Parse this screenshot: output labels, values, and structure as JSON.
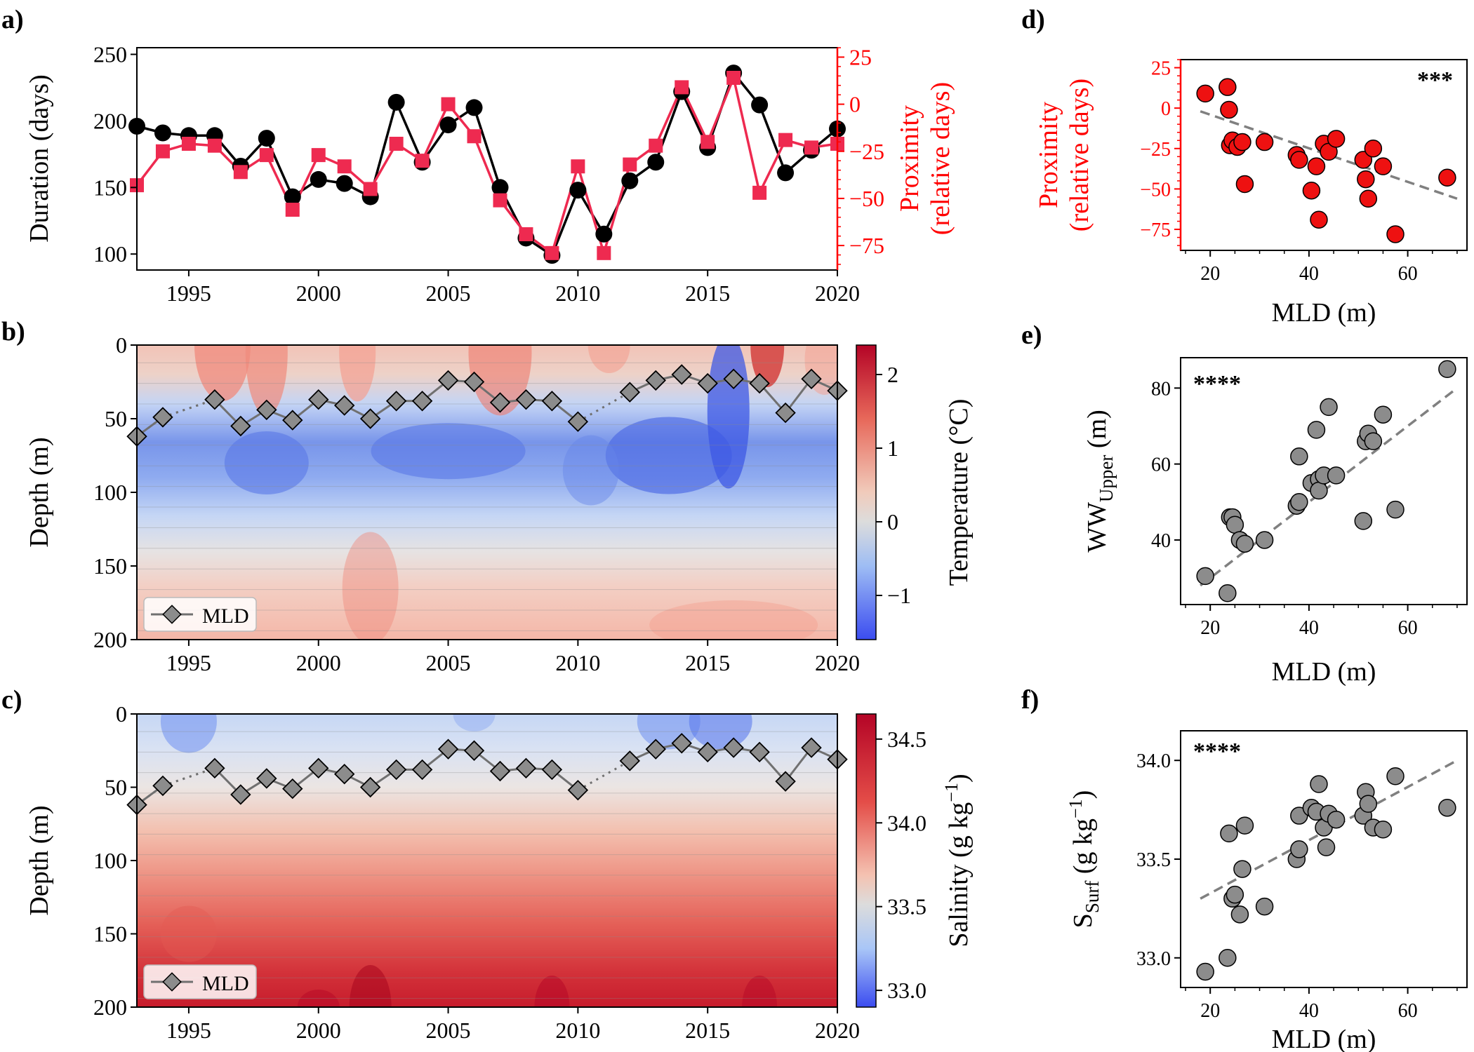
{
  "colors": {
    "duration": "#000000",
    "proximity": "#ee2a50",
    "proximity_axis": "#ff0000",
    "scatter_red": "#ee1111",
    "scatter_grey": "#8c8c8c",
    "mld_line": "#707070"
  },
  "chart_data": [
    {
      "panel": "a)",
      "type": "line",
      "x": [
        1993,
        1994,
        1995,
        1996,
        1997,
        1998,
        1999,
        2000,
        2001,
        2002,
        2003,
        2004,
        2005,
        2006,
        2007,
        2008,
        2009,
        2010,
        2011,
        2012,
        2013,
        2014,
        2015,
        2016,
        2017,
        2018,
        2019,
        2020
      ],
      "xticks": [
        1995,
        2000,
        2005,
        2010,
        2015,
        2020
      ],
      "xlim": [
        1993,
        2020
      ],
      "ylabel": "Duration (days)",
      "ylim": [
        88,
        255
      ],
      "yticks": [
        100,
        150,
        200,
        250
      ],
      "ylabel_right": "Proximity\n(relative days)",
      "ylim_right": [
        -88,
        30
      ],
      "yticks_right": [
        25,
        0,
        -25,
        -50,
        -75
      ],
      "series": [
        {
          "values": [
            196,
            191,
            189,
            189,
            166,
            187,
            143,
            156,
            153,
            143,
            214,
            169,
            197,
            210,
            150,
            112,
            99,
            148,
            115,
            155,
            169,
            222,
            180,
            236,
            212,
            161,
            178,
            194
          ]
        },
        {
          "values": [
            -43,
            -25,
            -21,
            -22,
            -36,
            -27,
            -56,
            -27,
            -33,
            -45,
            -21,
            -30,
            0,
            -17,
            -51,
            -69,
            -79,
            -33,
            -79,
            -32,
            -22,
            9,
            -20,
            14,
            -47,
            -19,
            -23,
            -21
          ]
        }
      ]
    },
    {
      "panel": "b)",
      "type": "heatmap",
      "ylabel": "Depth (m)",
      "ylim": [
        200,
        0
      ],
      "yticks": [
        0,
        50,
        100,
        150,
        200
      ],
      "xticks": [
        1995,
        2000,
        2005,
        2010,
        2015,
        2020
      ],
      "xlim": [
        1993,
        2020
      ],
      "colorbar_label": "Temperature (°C)",
      "colorbar_ticks": [
        "2",
        "1",
        "0",
        "−1"
      ],
      "colorbar_range": [
        -1.6,
        2.4
      ],
      "legend": "MLD"
    },
    {
      "panel": "c)",
      "type": "heatmap",
      "ylabel": "Depth (m)",
      "ylim": [
        200,
        0
      ],
      "yticks": [
        0,
        50,
        100,
        150,
        200
      ],
      "xticks": [
        1995,
        2000,
        2005,
        2010,
        2015,
        2020
      ],
      "xlim": [
        1993,
        2020
      ],
      "colorbar_label": "Salinity (g kg",
      "colorbar_label_sup": "−1",
      "colorbar_label_end": ")",
      "colorbar_ticks": [
        "34.5",
        "34.0",
        "33.5",
        "33.0"
      ],
      "colorbar_range": [
        32.9,
        34.65
      ],
      "legend": "MLD"
    },
    {
      "series_name": "MLD",
      "x": [
        1993,
        1994,
        1995,
        1996,
        1997,
        1998,
        1999,
        2000,
        2001,
        2002,
        2003,
        2004,
        2005,
        2006,
        2007,
        2008,
        2009,
        2010,
        2011,
        2012,
        2013,
        2014,
        2015,
        2016,
        2017,
        2018,
        2019,
        2020
      ],
      "values": [
        62,
        49,
        null,
        37,
        55,
        44,
        51,
        37,
        41,
        50,
        38,
        38,
        24,
        25,
        39,
        37,
        38,
        52,
        null,
        32,
        24,
        20,
        26,
        23,
        26,
        46,
        23,
        31
      ]
    },
    {
      "panel": "d)",
      "type": "scatter",
      "xlabel": "MLD (m)",
      "xlim": [
        14,
        72
      ],
      "xticks": [
        20,
        40,
        60
      ],
      "ylabel": "Proximity\n(relative days)",
      "ylim": [
        -88,
        30
      ],
      "yticks": [
        25,
        0,
        -25,
        -50,
        -75
      ],
      "significance": "***",
      "x": [
        19,
        23.5,
        23.8,
        24,
        24.5,
        25.5,
        26.5,
        27,
        31,
        37.5,
        38,
        40.5,
        41.5,
        42,
        43,
        44,
        45.5,
        51,
        51.5,
        52,
        53,
        55,
        57.5,
        68
      ],
      "y": [
        9,
        13,
        -1,
        -23,
        -20,
        -24,
        -21,
        -47,
        -21,
        -29,
        -32,
        -51,
        -36,
        -69,
        -22,
        -27,
        -19,
        -32,
        -44,
        -56,
        -25,
        -36,
        -78,
        -43
      ],
      "trend": [
        [
          18,
          -2
        ],
        [
          70,
          -56
        ]
      ]
    },
    {
      "panel": "e)",
      "type": "scatter",
      "xlabel": "MLD (m)",
      "xlim": [
        14,
        72
      ],
      "xticks": [
        20,
        40,
        60
      ],
      "ylabel": "WW",
      "ylabel_sub": "Upper",
      "ylabel_end": " (m)",
      "ylim": [
        23,
        88
      ],
      "yticks": [
        40,
        60,
        80
      ],
      "significance": "****",
      "x": [
        19,
        23.5,
        24,
        24.5,
        25,
        26,
        27,
        31,
        37.5,
        38,
        38,
        40.5,
        41.5,
        42,
        42,
        43,
        44,
        45.5,
        51,
        51.5,
        52,
        53,
        55,
        57.5,
        68
      ],
      "y": [
        30.5,
        26,
        46,
        46,
        44,
        40,
        39,
        40,
        49,
        50,
        62,
        55,
        69,
        56,
        53,
        57,
        75,
        57,
        45,
        66,
        68,
        66,
        73,
        48,
        85
      ],
      "trend": [
        [
          18,
          28
        ],
        [
          70,
          80
        ]
      ]
    },
    {
      "panel": "f)",
      "type": "scatter",
      "xlabel": "MLD (m)",
      "xlim": [
        14,
        72
      ],
      "xticks": [
        20,
        40,
        60
      ],
      "ylabel": "S",
      "ylabel_sub": "Surf",
      "ylabel_mid": " (g kg",
      "ylabel_sup": "−1",
      "ylabel_end": ")",
      "ylim": [
        32.85,
        34.15
      ],
      "yticks": [
        33.0,
        33.5,
        34.0
      ],
      "significance": "****",
      "x": [
        19,
        23.5,
        23.8,
        24.5,
        25,
        26,
        26.5,
        27,
        31,
        37.5,
        38,
        38,
        40.5,
        41.5,
        42,
        43,
        43.5,
        44,
        45.5,
        51,
        51.5,
        52,
        53,
        55,
        57.5,
        68
      ],
      "y": [
        32.93,
        33.0,
        33.63,
        33.3,
        33.32,
        33.22,
        33.45,
        33.67,
        33.26,
        33.5,
        33.55,
        33.72,
        33.76,
        33.74,
        33.88,
        33.66,
        33.56,
        33.73,
        33.7,
        33.72,
        33.84,
        33.78,
        33.66,
        33.65,
        33.92,
        33.76
      ],
      "trend": [
        [
          18,
          33.3
        ],
        [
          70,
          34.0
        ]
      ]
    }
  ]
}
